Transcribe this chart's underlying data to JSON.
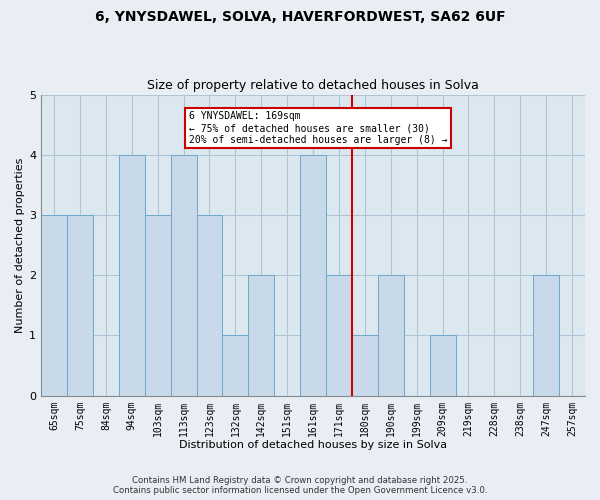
{
  "title_line1": "6, YNYSDAWEL, SOLVA, HAVERFORDWEST, SA62 6UF",
  "title_line2": "Size of property relative to detached houses in Solva",
  "xlabel": "Distribution of detached houses by size in Solva",
  "ylabel": "Number of detached properties",
  "bar_labels": [
    "65sqm",
    "75sqm",
    "84sqm",
    "94sqm",
    "103sqm",
    "113sqm",
    "123sqm",
    "132sqm",
    "142sqm",
    "151sqm",
    "161sqm",
    "171sqm",
    "180sqm",
    "190sqm",
    "199sqm",
    "209sqm",
    "219sqm",
    "228sqm",
    "238sqm",
    "247sqm",
    "257sqm"
  ],
  "bar_values": [
    3,
    3,
    0,
    4,
    3,
    4,
    3,
    1,
    2,
    0,
    4,
    2,
    1,
    2,
    0,
    1,
    0,
    0,
    0,
    2,
    0
  ],
  "bar_color": "#c8daea",
  "bar_edge_color": "#6ea8cc",
  "highlight_index": 11,
  "highlight_line_color": "#cc0000",
  "annotation_text": "6 YNYSDAWEL: 169sqm\n← 75% of detached houses are smaller (30)\n20% of semi-detached houses are larger (8) →",
  "annotation_box_color": "#ffffff",
  "annotation_box_edge": "#cc0000",
  "ylim": [
    0,
    5
  ],
  "yticks": [
    0,
    1,
    2,
    3,
    4,
    5
  ],
  "footer_line1": "Contains HM Land Registry data © Crown copyright and database right 2025.",
  "footer_line2": "Contains public sector information licensed under the Open Government Licence v3.0.",
  "background_color": "#e8eef4",
  "plot_bg_color": "#dce8f0",
  "grid_color": "#b0c4d8",
  "title_fontsize": 10,
  "subtitle_fontsize": 9,
  "label_fontsize": 8,
  "tick_fontsize": 7,
  "footer_fontsize": 6.2
}
